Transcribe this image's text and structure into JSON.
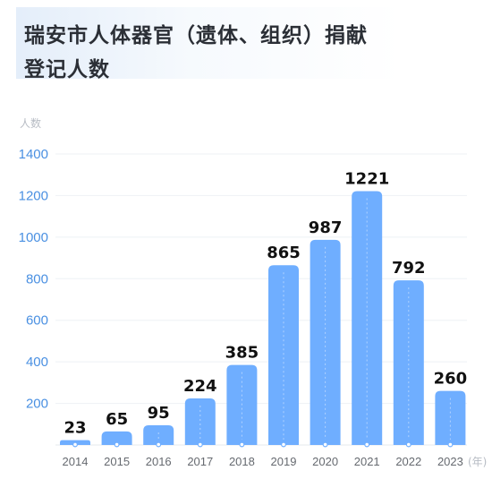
{
  "title": {
    "line1": "瑞安市人体器官（遗体、组织）捐献",
    "line2": "登记人数"
  },
  "colors": {
    "bar": "#6faeff",
    "axis_tick": "#4a90e2",
    "unit": "#b7bcc4",
    "title": "#2b2f36"
  },
  "chart_data": {
    "type": "bar",
    "title": "瑞安市人体器官（遗体、组织）捐献登记人数",
    "ylabel": "人数",
    "xlabel": "(年)",
    "ylim": [
      0,
      1400
    ],
    "yticks": [
      200,
      400,
      600,
      800,
      1000,
      1200,
      1400
    ],
    "categories": [
      "2014",
      "2015",
      "2016",
      "2017",
      "2018",
      "2019",
      "2020",
      "2021",
      "2022",
      "2023"
    ],
    "values": [
      23,
      65,
      95,
      224,
      385,
      865,
      987,
      1221,
      792,
      260
    ],
    "data_labels": [
      "23",
      "65",
      "95",
      "224",
      "385",
      "865",
      "987",
      "1221",
      "792",
      "260"
    ]
  }
}
